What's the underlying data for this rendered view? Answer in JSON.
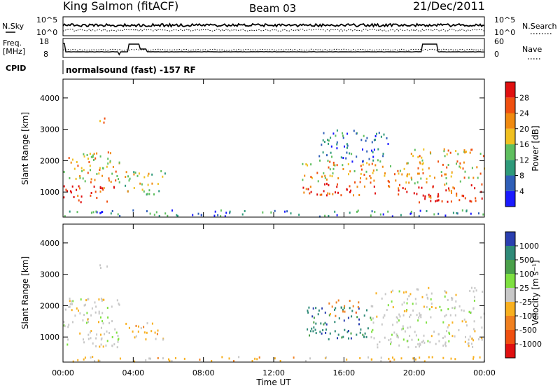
{
  "header": {
    "station": "King Salmon (fitACF)",
    "beam": "Beam 03",
    "date": "21/Dec/2011"
  },
  "summary_panels": {
    "nsky_label": "N.Sky",
    "nsky_ticks": [
      "10^5",
      "10^0"
    ],
    "nsearch_label": "N.Search",
    "nsearch_ticks": [
      "10^5",
      "10^0"
    ],
    "freq_label": "Freq.",
    "freq_unit": "[MHz]",
    "freq_ticks": [
      "18",
      "8"
    ],
    "nave_label": "Nave",
    "nave_ticks": [
      "60",
      "0"
    ],
    "cpid_label": "CPID",
    "cpid_text": "normalsound (fast) -157 RF"
  },
  "colors": {
    "power_scale": [
      "#1a1aff",
      "#2f5fb8",
      "#2e9a7a",
      "#5fbf5f",
      "#f0c020",
      "#f08a10",
      "#f05010",
      "#e01010"
    ],
    "velocity_scale": [
      "#2a3fb0",
      "#2f8a78",
      "#4aa04a",
      "#7ee040",
      "#c8c8c8",
      "#f8b020",
      "#f08020",
      "#f05010",
      "#e01010"
    ]
  },
  "chart_data": [
    {
      "type": "heatmap",
      "panel": "power",
      "ylabel": "Slant Range [km]",
      "ylim": [
        200,
        4600
      ],
      "yticks": [
        "1000",
        "2000",
        "3000",
        "4000"
      ],
      "xlim_hours": [
        0,
        24
      ],
      "colorbar_label": "Power [dB]",
      "colorbar_ticks": [
        "4",
        "8",
        "12",
        "16",
        "20",
        "24",
        "28"
      ],
      "scatter_regions": [
        {
          "t0": 0.0,
          "t1": 3.2,
          "r0": 700,
          "r1": 2300,
          "level": 4
        },
        {
          "t0": 2.0,
          "t1": 2.6,
          "r0": 3150,
          "r1": 3400,
          "level": 4
        },
        {
          "t0": 3.5,
          "t1": 5.8,
          "r0": 950,
          "r1": 1700,
          "level": 3
        },
        {
          "t0": 13.6,
          "t1": 19.8,
          "r0": 900,
          "r1": 2000,
          "level": 4
        },
        {
          "t0": 14.5,
          "t1": 18.5,
          "r0": 2000,
          "r1": 3000,
          "level": 1
        },
        {
          "t0": 19.8,
          "t1": 24.0,
          "r0": 700,
          "r1": 2400,
          "level": 4
        },
        {
          "t0": 0.0,
          "t1": 24.0,
          "r0": 250,
          "r1": 450,
          "level": 1
        }
      ]
    },
    {
      "type": "heatmap",
      "panel": "velocity",
      "ylabel": "Slant Range [km]",
      "ylim": [
        200,
        4600
      ],
      "yticks": [
        "1000",
        "2000",
        "3000",
        "4000"
      ],
      "xlim_hours": [
        0,
        24
      ],
      "xticks": [
        "00:00",
        "04:00",
        "08:00",
        "12:00",
        "16:00",
        "20:00",
        "00:00"
      ],
      "xlabel": "Time UT",
      "colorbar_label": "Velocity [m s⁻¹]",
      "colorbar_ticks": [
        "1000",
        "500",
        "100",
        "25",
        "-25",
        "-100",
        "-500",
        "-1000"
      ],
      "scatter_regions": [
        {
          "t0": 0.0,
          "t1": 3.2,
          "r0": 700,
          "r1": 2300,
          "vel": 4
        },
        {
          "t0": 2.0,
          "t1": 2.6,
          "r0": 3150,
          "r1": 3400,
          "vel": 4
        },
        {
          "t0": 3.5,
          "t1": 5.8,
          "r0": 950,
          "r1": 1500,
          "vel": 5
        },
        {
          "t0": 13.6,
          "t1": 17.5,
          "r0": 900,
          "r1": 2000,
          "vel": 1
        },
        {
          "t0": 15.0,
          "t1": 16.8,
          "r0": 1700,
          "r1": 2200,
          "vel": 6
        },
        {
          "t0": 17.5,
          "t1": 24.0,
          "r0": 700,
          "r1": 2600,
          "vel": 4
        },
        {
          "t0": 0.0,
          "t1": 24.0,
          "r0": 250,
          "r1": 400,
          "vel": 5
        }
      ]
    }
  ]
}
